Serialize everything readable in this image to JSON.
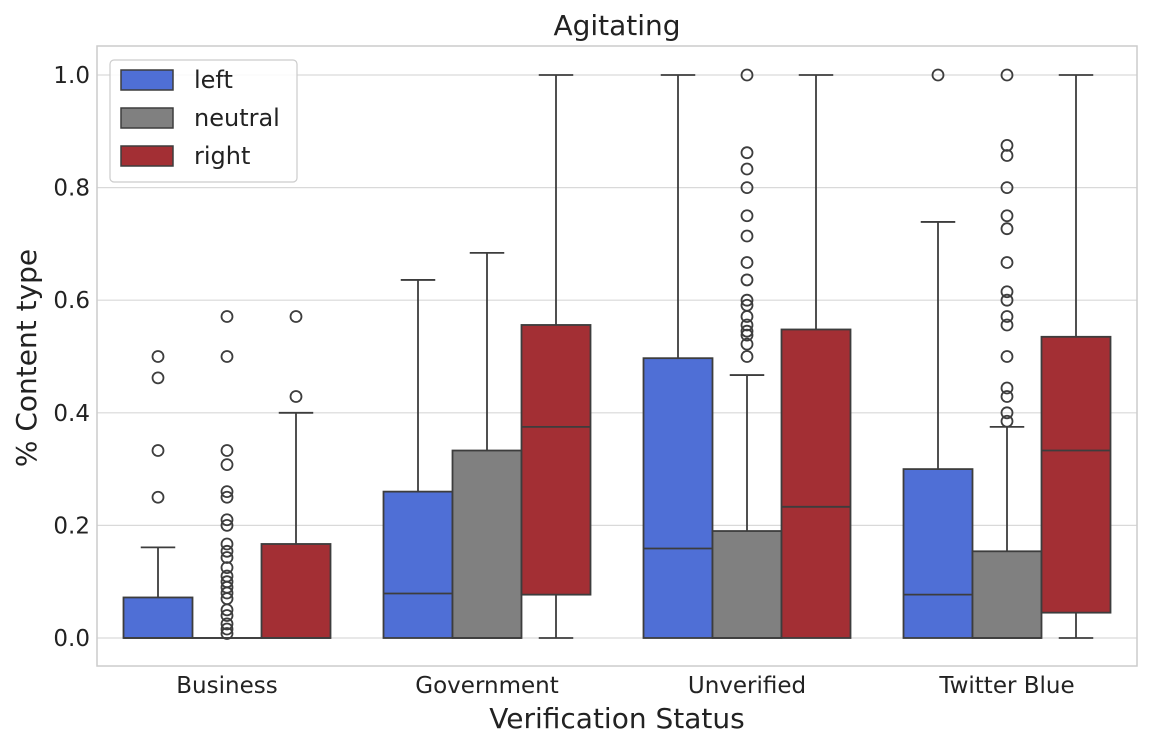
{
  "chart_data": {
    "type": "box",
    "title": "Agitating",
    "xlabel": "Verification Status",
    "ylabel": "% Content type",
    "ylim": [
      -0.05,
      1.05
    ],
    "yticks": [
      0.0,
      0.2,
      0.4,
      0.6,
      0.8,
      1.0
    ],
    "ytick_labels": [
      "0.0",
      "0.2",
      "0.4",
      "0.6",
      "0.8",
      "1.0"
    ],
    "grid": true,
    "legend_position": "top-left",
    "categories": [
      "Business",
      "Government",
      "Unverified",
      "Twitter Blue"
    ],
    "series": [
      {
        "name": "left",
        "color": "#4f6fd6",
        "boxes": [
          {
            "min": 0.0,
            "q1": 0.0,
            "median": 0.0,
            "q3": 0.072,
            "max": 0.161,
            "outliers": [
              0.25,
              0.333,
              0.462,
              0.5
            ]
          },
          {
            "min": 0.0,
            "q1": 0.0,
            "median": 0.079,
            "q3": 0.26,
            "max": 0.636,
            "outliers": []
          },
          {
            "min": 0.0,
            "q1": 0.0,
            "median": 0.159,
            "q3": 0.497,
            "max": 1.0,
            "outliers": []
          },
          {
            "min": 0.0,
            "q1": 0.0,
            "median": 0.077,
            "q3": 0.3,
            "max": 0.739,
            "outliers": [
              1.0
            ]
          }
        ]
      },
      {
        "name": "neutral",
        "color": "#808080",
        "boxes": [
          {
            "min": 0.0,
            "q1": 0.0,
            "median": 0.0,
            "q3": 0.0,
            "max": 0.0,
            "outliers": [
              0.008,
              0.016,
              0.025,
              0.04,
              0.05,
              0.07,
              0.08,
              0.09,
              0.1,
              0.11,
              0.125,
              0.143,
              0.154,
              0.167,
              0.2,
              0.21,
              0.25,
              0.26,
              0.308,
              0.333,
              0.5,
              0.571
            ]
          },
          {
            "min": 0.0,
            "q1": 0.0,
            "median": 0.0,
            "q3": 0.333,
            "max": 0.684,
            "outliers": []
          },
          {
            "min": 0.0,
            "q1": 0.0,
            "median": 0.0,
            "q3": 0.19,
            "max": 0.467,
            "outliers": [
              0.5,
              0.522,
              0.538,
              0.545,
              0.556,
              0.571,
              0.591,
              0.6,
              0.636,
              0.667,
              0.714,
              0.75,
              0.8,
              0.833,
              0.862,
              1.0
            ]
          }
        ]
      },
      {
        "name": "right",
        "color": "#a32f34",
        "boxes": [
          {
            "min": 0.0,
            "q1": 0.0,
            "median": 0.0,
            "q3": 0.167,
            "max": 0.4,
            "outliers": [
              0.429,
              0.571
            ]
          },
          {
            "min": 0.0,
            "q1": 0.077,
            "median": 0.375,
            "q3": 0.556,
            "max": 1.0,
            "outliers": []
          },
          {
            "min": 0.0,
            "q1": 0.0,
            "median": 0.233,
            "q3": 0.548,
            "max": 1.0,
            "outliers": []
          },
          {
            "min": 0.0,
            "q1": 0.045,
            "median": 0.333,
            "q3": 0.535,
            "max": 1.0,
            "outliers": []
          }
        ]
      }
    ],
    "extra_neutral_twitter_blue": {
      "min": 0.0,
      "q1": 0.0,
      "median": 0.0,
      "q3": 0.154,
      "max": 0.375,
      "outliers": [
        0.385,
        0.4,
        0.429,
        0.444,
        0.5,
        0.556,
        0.571,
        0.6,
        0.615,
        0.667,
        0.727,
        0.75,
        0.8,
        0.857,
        0.875,
        1.0
      ]
    }
  }
}
